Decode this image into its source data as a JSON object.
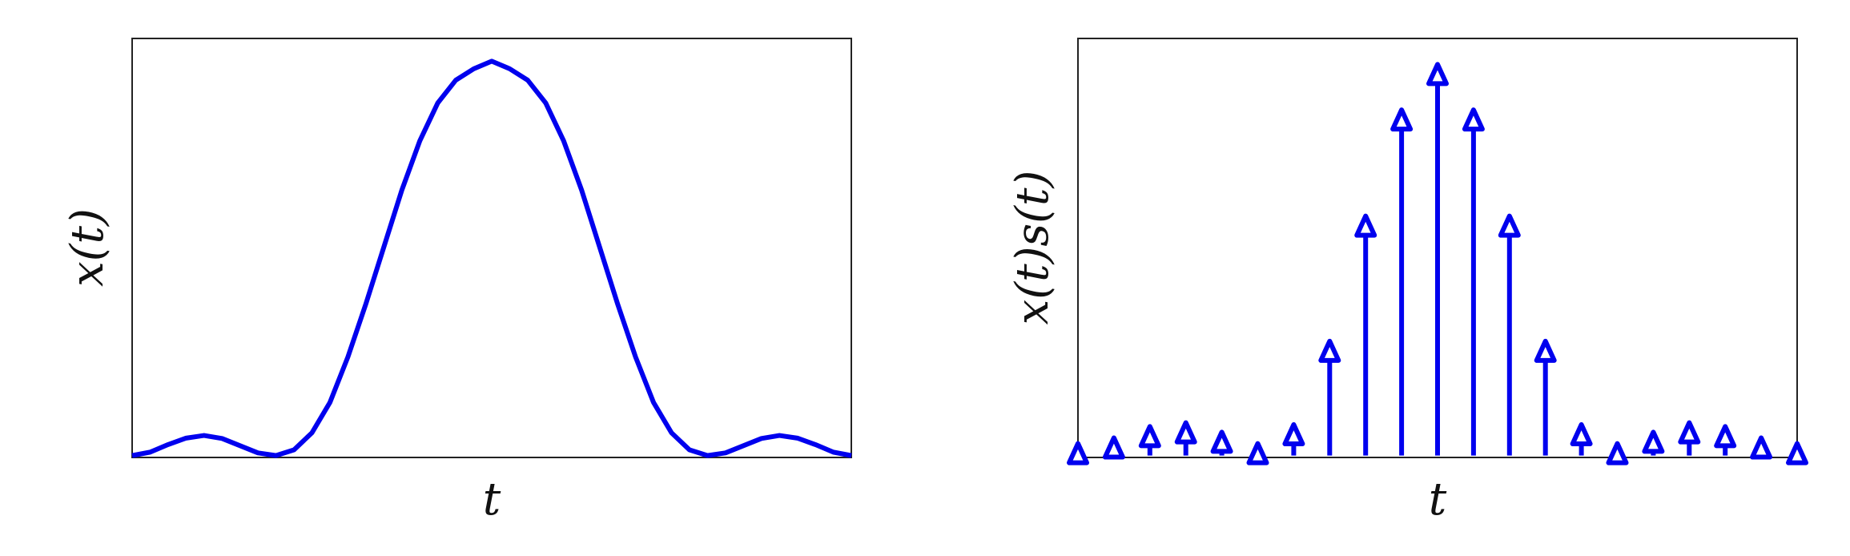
{
  "colors": {
    "series": "#0000ee",
    "frame": "#222222",
    "background": "#ffffff"
  },
  "chart_data": [
    {
      "type": "line",
      "title": "",
      "xlabel": "t",
      "ylabel": "x(t)",
      "xlim": [
        -2,
        2
      ],
      "ylim": [
        -0.005,
        1.1
      ],
      "ticks": false,
      "grid": false,
      "series": [
        {
          "x": [
            -2.0,
            -1.9,
            -1.8,
            -1.7,
            -1.6,
            -1.5,
            -1.4,
            -1.3,
            -1.2,
            -1.1,
            -1.0,
            -0.9,
            -0.8,
            -0.7,
            -0.6,
            -0.5,
            -0.4,
            -0.3,
            -0.2,
            -0.1,
            0.0,
            0.1,
            0.2,
            0.3,
            0.4,
            0.5,
            0.6,
            0.7,
            0.8,
            0.9,
            1.0,
            1.1,
            1.2,
            1.3,
            1.4,
            1.5,
            1.6,
            1.7,
            1.8,
            1.9,
            2.0
          ],
          "y": [
            0.0,
            0.009,
            0.029,
            0.046,
            0.053,
            0.045,
            0.026,
            0.007,
            0.0,
            0.015,
            0.06,
            0.14,
            0.26,
            0.4,
            0.55,
            0.7,
            0.83,
            0.93,
            0.99,
            1.02,
            1.04,
            1.02,
            0.99,
            0.93,
            0.83,
            0.7,
            0.55,
            0.4,
            0.26,
            0.14,
            0.06,
            0.015,
            0.0,
            0.007,
            0.026,
            0.045,
            0.053,
            0.046,
            0.029,
            0.009,
            0.0
          ]
        }
      ]
    },
    {
      "type": "stem",
      "title": "",
      "xlabel": "t",
      "ylabel": "x(t)s(t)",
      "xlim": [
        -2,
        2
      ],
      "ylim": [
        -0.005,
        1.1
      ],
      "ticks": false,
      "grid": false,
      "marker": "triangle-up",
      "series": [
        {
          "x": [
            -2.0,
            -1.8,
            -1.6,
            -1.4,
            -1.2,
            -1.0,
            -0.8,
            -0.6,
            -0.4,
            -0.2,
            0.0,
            0.2,
            0.4,
            0.6,
            0.8,
            1.0,
            1.2,
            1.4,
            1.6,
            1.8,
            2.0
          ],
          "y": [
            0.0,
            0.015,
            0.045,
            0.055,
            0.03,
            0.0,
            0.05,
            0.27,
            0.6,
            0.88,
            1.0,
            0.88,
            0.6,
            0.27,
            0.05,
            0.0,
            0.03,
            0.055,
            0.045,
            0.015,
            0.0
          ]
        }
      ]
    }
  ]
}
